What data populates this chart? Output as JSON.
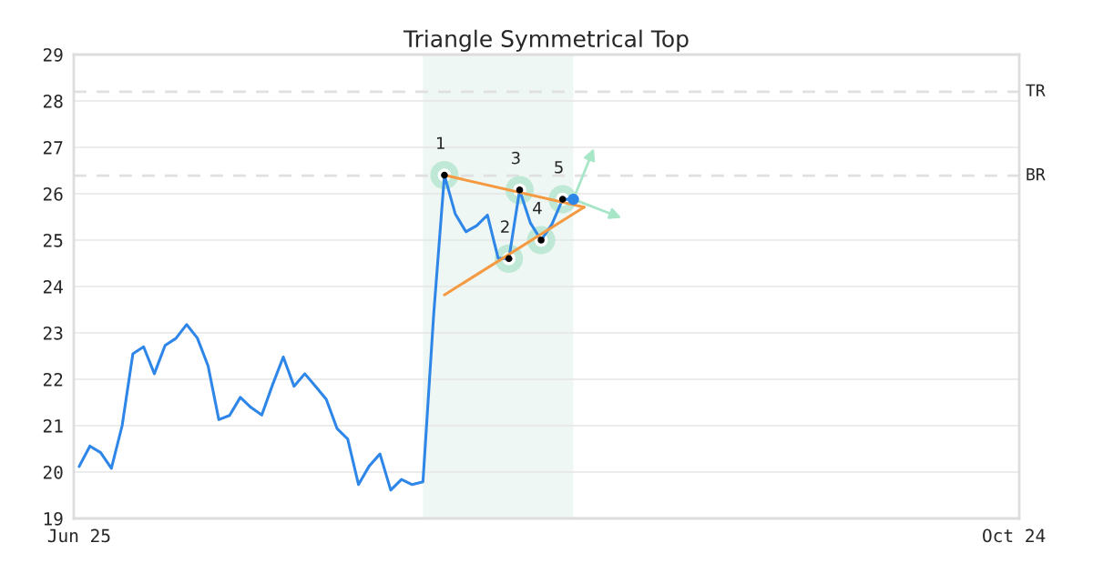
{
  "chart_data": {
    "type": "line",
    "title": "Triangle Symmetrical Top",
    "categories": [
      "Jun 25",
      null,
      null,
      null,
      null,
      null,
      null,
      null,
      null,
      null,
      null,
      null,
      null,
      null,
      null,
      null,
      null,
      null,
      null,
      null,
      null,
      null,
      null,
      null,
      null,
      null,
      null,
      null,
      null,
      null,
      null,
      null,
      null,
      null,
      null,
      null,
      null,
      null,
      null,
      null,
      null,
      null,
      null,
      null,
      null,
      null,
      null,
      null,
      null,
      null,
      null,
      null,
      null,
      null,
      null,
      null,
      null,
      null,
      null,
      null,
      null,
      null,
      null,
      null,
      null,
      null,
      null,
      null,
      null,
      null,
      null,
      null,
      null,
      null,
      null,
      null,
      null,
      null,
      null,
      null,
      null,
      null,
      null,
      null,
      null,
      null,
      null,
      "Oct 24"
    ],
    "series": [
      {
        "color": "#2e86e8",
        "values": [
          20.12,
          20.56,
          20.42,
          20.08,
          21.0,
          22.55,
          22.7,
          22.12,
          22.73,
          22.88,
          23.18,
          22.89,
          22.29,
          21.13,
          21.22,
          21.61,
          21.39,
          21.23,
          21.88,
          22.48,
          21.85,
          22.12,
          21.85,
          21.57,
          20.94,
          20.71,
          19.73,
          20.13,
          20.39,
          19.61,
          19.84,
          19.73,
          19.79,
          23.4,
          26.4,
          25.57,
          25.18,
          25.31,
          25.54,
          24.61,
          24.6,
          26.08,
          25.37,
          25.0,
          25.34,
          25.88,
          25.88,
          null,
          null,
          null,
          null,
          null,
          null,
          null,
          null,
          null,
          null,
          null,
          null,
          null,
          null,
          null,
          null,
          null,
          null,
          null,
          null,
          null,
          null,
          null,
          null,
          null,
          null,
          null,
          null,
          null,
          null,
          null,
          null,
          null,
          null,
          null,
          null,
          null,
          null,
          null,
          null,
          null
        ]
      },
      {
        "type": "line",
        "color": "#f59a42",
        "values": [
          null,
          null,
          null,
          null,
          null,
          null,
          null,
          null,
          null,
          null,
          null,
          null,
          null,
          null,
          null,
          null,
          null,
          null,
          null,
          null,
          null,
          null,
          null,
          null,
          null,
          null,
          null,
          null,
          null,
          null,
          null,
          null,
          null,
          null,
          26.4,
          null,
          null,
          null,
          null,
          null,
          null,
          null,
          null,
          null,
          null,
          null,
          null,
          25.71,
          null,
          null,
          null,
          null,
          null,
          null,
          null,
          null,
          null,
          null,
          null,
          null,
          null,
          null,
          null,
          null,
          null,
          null,
          null,
          null,
          null,
          null,
          null,
          null,
          null,
          null,
          null,
          null,
          null,
          null,
          null,
          null,
          null,
          null,
          null,
          null,
          null,
          null,
          null,
          null
        ]
      },
      {
        "type": "line",
        "color": "#f59a42",
        "values": [
          null,
          null,
          null,
          null,
          null,
          null,
          null,
          null,
          null,
          null,
          null,
          null,
          null,
          null,
          null,
          null,
          null,
          null,
          null,
          null,
          null,
          null,
          null,
          null,
          null,
          null,
          null,
          null,
          null,
          null,
          null,
          null,
          null,
          null,
          23.82,
          null,
          null,
          null,
          null,
          null,
          null,
          null,
          null,
          null,
          null,
          null,
          null,
          25.71,
          null,
          null,
          null,
          null,
          null,
          null,
          null,
          null,
          null,
          null,
          null,
          null,
          null,
          null,
          null,
          null,
          null,
          null,
          null,
          null,
          null,
          null,
          null,
          null,
          null,
          null,
          null,
          null,
          null,
          null,
          null,
          null,
          null,
          null,
          null,
          null,
          null,
          null,
          null,
          null
        ]
      },
      {
        "type": "scatter",
        "color": "#000000",
        "marker": "circle",
        "values": [
          null,
          null,
          null,
          null,
          null,
          null,
          null,
          null,
          null,
          null,
          null,
          null,
          null,
          null,
          null,
          null,
          null,
          null,
          null,
          null,
          null,
          null,
          null,
          null,
          null,
          null,
          null,
          null,
          null,
          null,
          null,
          null,
          null,
          null,
          26.4,
          null,
          null,
          null,
          null,
          null,
          24.6,
          26.08,
          null,
          25.0,
          null,
          25.88,
          null,
          null,
          null,
          null,
          null,
          null,
          null,
          null,
          null,
          null,
          null,
          null,
          null,
          null,
          null,
          null,
          null,
          null,
          null,
          null,
          null,
          null,
          null,
          null,
          null,
          null,
          null,
          null,
          null,
          null,
          null,
          null,
          null,
          null,
          null,
          null,
          null,
          null,
          null,
          null,
          null,
          null
        ]
      },
      {
        "type": "scatter",
        "color": "#2e86e8",
        "marker": "circle",
        "values": [
          null,
          null,
          null,
          null,
          null,
          null,
          null,
          null,
          null,
          null,
          null,
          null,
          null,
          null,
          null,
          null,
          null,
          null,
          null,
          null,
          null,
          null,
          null,
          null,
          null,
          null,
          null,
          null,
          null,
          null,
          null,
          null,
          null,
          null,
          null,
          null,
          null,
          null,
          null,
          null,
          null,
          null,
          null,
          null,
          null,
          null,
          25.88,
          null,
          null,
          null,
          null,
          null,
          null,
          null,
          null,
          null,
          null,
          null,
          null,
          null,
          null,
          null,
          null,
          null,
          null,
          null,
          null,
          null,
          null,
          null,
          null,
          null,
          null,
          null,
          null,
          null,
          null,
          null,
          null,
          null,
          null,
          null,
          null,
          null,
          null,
          null,
          null,
          null
        ]
      }
    ],
    "annotations": [
      "1",
      "2",
      "3",
      "4",
      "5"
    ],
    "ref_lines": [
      {
        "axis": "y",
        "value": 28.2,
        "label": "TR",
        "color": "#e0e0e0",
        "line_style": "dashed"
      },
      {
        "axis": "y",
        "value": 26.39,
        "label": "BR",
        "color": "#e0e0e0",
        "line_style": "dashed"
      }
    ],
    "ylim": [
      19,
      29
    ],
    "yticks": [
      19,
      20,
      21,
      22,
      23,
      24,
      25,
      26,
      27,
      28,
      29
    ],
    "grid": "y"
  }
}
